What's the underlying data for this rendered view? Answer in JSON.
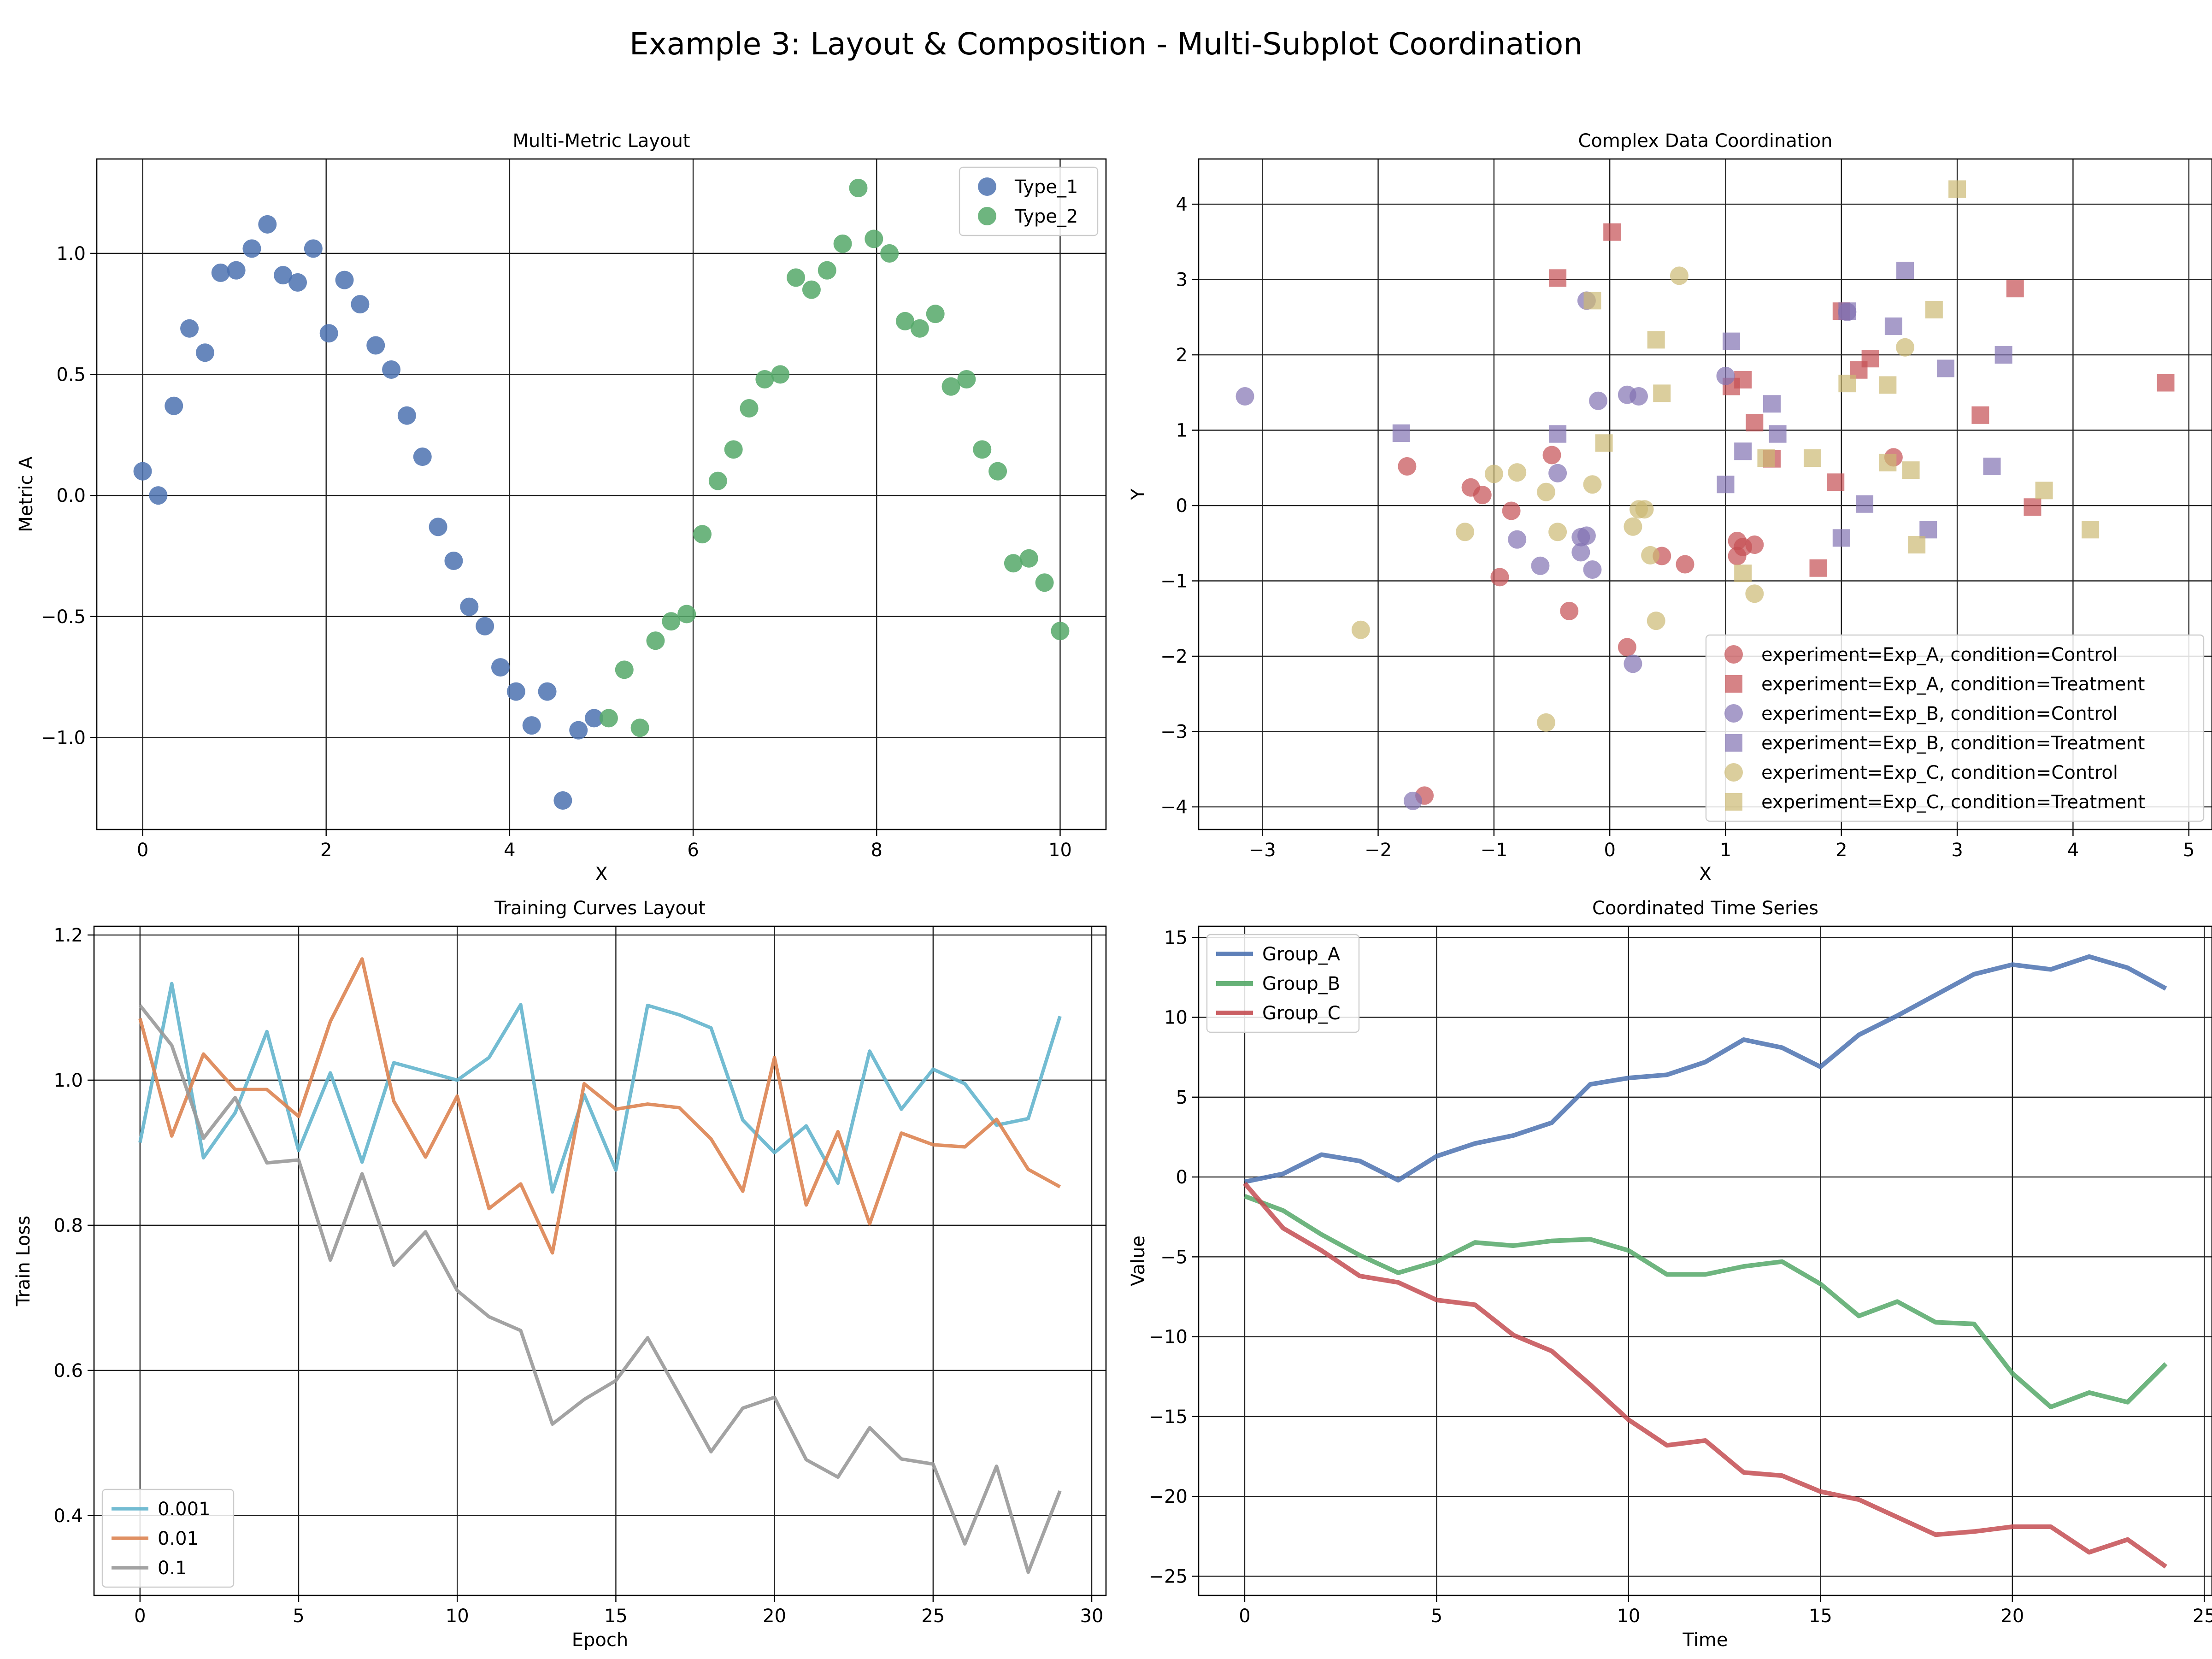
{
  "suptitle": "Example 3: Layout & Composition - Multi-Subplot Coordination",
  "chart_data": [
    {
      "type": "scatter",
      "title": "Multi-Metric Layout",
      "xlabel": "X",
      "ylabel": "Metric A",
      "xlim": [
        -0.5,
        10.5
      ],
      "ylim": [
        -1.38,
        1.39
      ],
      "xticks": [
        0,
        2,
        4,
        6,
        8,
        10
      ],
      "yticks": [
        -1.0,
        -0.5,
        0.0,
        0.5,
        1.0
      ],
      "ytick_labels": [
        "−1.0",
        "−0.5",
        "0.0",
        "0.5",
        "1.0"
      ],
      "grid": true,
      "legend": "top-right",
      "series": [
        {
          "name": "Type_1",
          "color": "#4c72b0",
          "points": [
            [
              0.0,
              0.1
            ],
            [
              0.17,
              0.0
            ],
            [
              0.34,
              0.37
            ],
            [
              0.51,
              0.69
            ],
            [
              0.68,
              0.59
            ],
            [
              0.85,
              0.92
            ],
            [
              1.02,
              0.93
            ],
            [
              1.19,
              1.02
            ],
            [
              1.36,
              1.12
            ],
            [
              1.53,
              0.91
            ],
            [
              1.69,
              0.88
            ],
            [
              1.86,
              1.02
            ],
            [
              2.03,
              0.67
            ],
            [
              2.2,
              0.89
            ],
            [
              2.37,
              0.79
            ],
            [
              2.54,
              0.62
            ],
            [
              2.71,
              0.52
            ],
            [
              2.88,
              0.33
            ],
            [
              3.05,
              0.16
            ],
            [
              3.22,
              -0.13
            ],
            [
              3.39,
              -0.27
            ],
            [
              3.56,
              -0.46
            ],
            [
              3.73,
              -0.54
            ],
            [
              3.9,
              -0.71
            ],
            [
              4.07,
              -0.81
            ],
            [
              4.24,
              -0.95
            ],
            [
              4.41,
              -0.81
            ],
            [
              4.58,
              -1.26
            ],
            [
              4.75,
              -0.97
            ],
            [
              4.92,
              -0.92
            ]
          ]
        },
        {
          "name": "Type_2",
          "color": "#55a868",
          "points": [
            [
              5.08,
              -0.92
            ],
            [
              5.25,
              -0.72
            ],
            [
              5.42,
              -0.96
            ],
            [
              5.59,
              -0.6
            ],
            [
              5.76,
              -0.52
            ],
            [
              5.93,
              -0.49
            ],
            [
              6.1,
              -0.16
            ],
            [
              6.27,
              0.06
            ],
            [
              6.44,
              0.19
            ],
            [
              6.61,
              0.36
            ],
            [
              6.78,
              0.48
            ],
            [
              6.95,
              0.5
            ],
            [
              7.12,
              0.9
            ],
            [
              7.29,
              0.85
            ],
            [
              7.46,
              0.93
            ],
            [
              7.63,
              1.04
            ],
            [
              7.8,
              1.27
            ],
            [
              7.97,
              1.06
            ],
            [
              8.14,
              1.0
            ],
            [
              8.31,
              0.72
            ],
            [
              8.47,
              0.69
            ],
            [
              8.64,
              0.75
            ],
            [
              8.81,
              0.45
            ],
            [
              8.98,
              0.48
            ],
            [
              9.15,
              0.19
            ],
            [
              9.32,
              0.1
            ],
            [
              9.49,
              -0.28
            ],
            [
              9.66,
              -0.26
            ],
            [
              9.83,
              -0.36
            ],
            [
              10.0,
              -0.56
            ]
          ]
        }
      ]
    },
    {
      "type": "scatter",
      "title": "Complex Data Coordination",
      "xlabel": "X",
      "ylabel": "Y",
      "xlim": [
        -3.55,
        5.2
      ],
      "ylim": [
        -4.3,
        4.6
      ],
      "xticks": [
        -3,
        -2,
        -1,
        0,
        1,
        2,
        3,
        4,
        5
      ],
      "xtick_labels": [
        "−3",
        "−2",
        "−1",
        "0",
        "1",
        "2",
        "3",
        "4",
        "5"
      ],
      "yticks": [
        -4,
        -3,
        -2,
        -1,
        0,
        1,
        2,
        3,
        4
      ],
      "ytick_labels": [
        "−4",
        "−3",
        "−2",
        "−1",
        "0",
        "1",
        "2",
        "3",
        "4"
      ],
      "grid": true,
      "legend": "bottom-right",
      "series": [
        {
          "name": "experiment=Exp_A, condition=Control",
          "color": "#c44e52",
          "marker": "circle",
          "points": [
            [
              -1.75,
              0.52
            ],
            [
              -1.2,
              0.24
            ],
            [
              -1.1,
              0.14
            ],
            [
              -0.95,
              -0.95
            ],
            [
              -0.85,
              -0.07
            ],
            [
              -0.5,
              0.67
            ],
            [
              -0.35,
              -1.4
            ],
            [
              0.15,
              -1.88
            ],
            [
              0.45,
              -0.67
            ],
            [
              0.65,
              -0.78
            ],
            [
              1.1,
              -0.47
            ],
            [
              1.1,
              -0.67
            ],
            [
              1.15,
              -0.55
            ],
            [
              1.25,
              -0.52
            ],
            [
              2.45,
              0.64
            ],
            [
              -1.6,
              -3.85
            ]
          ]
        },
        {
          "name": "experiment=Exp_A, condition=Treatment",
          "color": "#c44e52",
          "marker": "square",
          "points": [
            [
              -0.45,
              3.02
            ],
            [
              0.02,
              3.63
            ],
            [
              1.05,
              1.58
            ],
            [
              1.15,
              1.67
            ],
            [
              1.25,
              1.1
            ],
            [
              1.4,
              0.62
            ],
            [
              1.8,
              -0.83
            ],
            [
              1.95,
              0.31
            ],
            [
              2.0,
              2.58
            ],
            [
              2.15,
              1.8
            ],
            [
              2.25,
              1.95
            ],
            [
              3.2,
              1.2
            ],
            [
              3.5,
              2.88
            ],
            [
              3.65,
              -0.02
            ],
            [
              4.8,
              1.63
            ]
          ]
        },
        {
          "name": "experiment=Exp_B, condition=Control",
          "color": "#8172b2",
          "marker": "circle",
          "points": [
            [
              -3.15,
              1.45
            ],
            [
              -0.8,
              -0.45
            ],
            [
              -0.6,
              -0.8
            ],
            [
              -0.45,
              0.43
            ],
            [
              -0.25,
              -0.42
            ],
            [
              -0.2,
              -0.4
            ],
            [
              -0.25,
              -0.62
            ],
            [
              -0.15,
              -0.85
            ],
            [
              -0.1,
              1.39
            ],
            [
              0.15,
              1.47
            ],
            [
              0.25,
              1.45
            ],
            [
              1.0,
              1.72
            ],
            [
              2.05,
              2.57
            ],
            [
              -0.2,
              2.72
            ],
            [
              0.2,
              -2.1
            ],
            [
              -1.7,
              -3.92
            ]
          ]
        },
        {
          "name": "experiment=Exp_B, condition=Treatment",
          "color": "#8172b2",
          "marker": "square",
          "points": [
            [
              -1.8,
              0.96
            ],
            [
              -0.45,
              0.95
            ],
            [
              1.0,
              0.28
            ],
            [
              1.05,
              2.18
            ],
            [
              1.15,
              0.72
            ],
            [
              1.4,
              1.35
            ],
            [
              1.45,
              0.95
            ],
            [
              2.0,
              -0.43
            ],
            [
              2.05,
              2.58
            ],
            [
              2.2,
              0.02
            ],
            [
              2.45,
              2.38
            ],
            [
              2.55,
              3.12
            ],
            [
              2.75,
              -0.32
            ],
            [
              2.9,
              1.82
            ],
            [
              3.3,
              0.52
            ],
            [
              3.4,
              2.0
            ]
          ]
        },
        {
          "name": "experiment=Exp_C, condition=Control",
          "color": "#ccb974",
          "marker": "circle",
          "points": [
            [
              -2.15,
              -1.65
            ],
            [
              -1.25,
              -0.35
            ],
            [
              -1.0,
              0.42
            ],
            [
              -0.8,
              0.44
            ],
            [
              -0.55,
              0.18
            ],
            [
              -0.45,
              -0.35
            ],
            [
              -0.15,
              0.28
            ],
            [
              0.2,
              -0.28
            ],
            [
              0.25,
              -0.05
            ],
            [
              0.3,
              -0.05
            ],
            [
              0.6,
              3.05
            ],
            [
              0.35,
              -0.66
            ],
            [
              0.4,
              -1.53
            ],
            [
              1.25,
              -1.17
            ],
            [
              2.55,
              2.1
            ],
            [
              -0.55,
              -2.88
            ]
          ]
        },
        {
          "name": "experiment=Exp_C, condition=Treatment",
          "color": "#ccb974",
          "marker": "square",
          "points": [
            [
              -0.15,
              2.72
            ],
            [
              -0.05,
              0.83
            ],
            [
              0.4,
              2.2
            ],
            [
              0.45,
              1.49
            ],
            [
              1.15,
              -0.9
            ],
            [
              1.35,
              0.63
            ],
            [
              1.75,
              0.63
            ],
            [
              2.05,
              1.62
            ],
            [
              2.4,
              1.6
            ],
            [
              2.4,
              0.57
            ],
            [
              2.6,
              0.47
            ],
            [
              2.65,
              -0.52
            ],
            [
              2.8,
              2.6
            ],
            [
              3.0,
              4.2
            ],
            [
              3.75,
              0.2
            ],
            [
              4.15,
              -0.32
            ]
          ]
        }
      ]
    },
    {
      "type": "line",
      "title": "Training Curves Layout",
      "xlabel": "Epoch",
      "ylabel": "Train Loss",
      "xlim": [
        -1.45,
        30.45
      ],
      "ylim": [
        0.29,
        1.212
      ],
      "xticks": [
        0,
        5,
        10,
        15,
        20,
        25,
        30
      ],
      "yticks": [
        0.4,
        0.6,
        0.8,
        1.0,
        1.2
      ],
      "ytick_labels": [
        "0.4",
        "0.6",
        "0.8",
        "1.0",
        "1.2"
      ],
      "grid": true,
      "legend": "bottom-left",
      "x": [
        0,
        1,
        2,
        3,
        4,
        5,
        6,
        7,
        8,
        9,
        10,
        11,
        12,
        13,
        14,
        15,
        16,
        17,
        18,
        19,
        20,
        21,
        22,
        23,
        24,
        25,
        26,
        27,
        28,
        29
      ],
      "series": [
        {
          "name": "0.001",
          "color": "#64b5cd",
          "values": [
            0.914,
            1.133,
            0.893,
            0.955,
            1.067,
            0.903,
            1.01,
            0.887,
            1.024,
            1.012,
            1.0,
            1.031,
            1.104,
            0.846,
            0.98,
            0.876,
            1.103,
            1.09,
            1.072,
            0.945,
            0.9,
            0.937,
            0.858,
            1.04,
            0.96,
            1.015,
            0.995,
            0.938,
            0.947,
            1.088
          ]
        },
        {
          "name": "0.01",
          "color": "#dd8452",
          "values": [
            1.085,
            0.923,
            1.036,
            0.987,
            0.987,
            0.95,
            1.081,
            1.167,
            0.971,
            0.894,
            0.978,
            0.823,
            0.857,
            0.762,
            0.995,
            0.96,
            0.967,
            0.962,
            0.919,
            0.847,
            1.031,
            0.828,
            0.929,
            0.802,
            0.927,
            0.911,
            0.908,
            0.946,
            0.877,
            0.853
          ]
        },
        {
          "name": "0.1",
          "color": "#999999",
          "values": [
            1.103,
            1.048,
            0.92,
            0.976,
            0.886,
            0.89,
            0.752,
            0.871,
            0.745,
            0.791,
            0.71,
            0.674,
            0.655,
            0.526,
            0.56,
            0.586,
            0.645,
            0.567,
            0.488,
            0.548,
            0.563,
            0.477,
            0.453,
            0.521,
            0.478,
            0.471,
            0.361,
            0.468,
            0.322,
            0.434
          ]
        }
      ]
    },
    {
      "type": "line",
      "title": "Coordinated Time Series",
      "xlabel": "Time",
      "ylabel": "Value",
      "xlim": [
        -1.2,
        25.2
      ],
      "ylim": [
        -26.2,
        15.7
      ],
      "xticks": [
        0,
        5,
        10,
        15,
        20,
        25
      ],
      "yticks": [
        -25,
        -20,
        -15,
        -10,
        -5,
        0,
        5,
        10,
        15
      ],
      "ytick_labels": [
        "−25",
        "−20",
        "−15",
        "−10",
        "−5",
        "0",
        "5",
        "10",
        "15"
      ],
      "grid": true,
      "legend": "top-left",
      "x": [
        0,
        1,
        2,
        3,
        4,
        5,
        6,
        7,
        8,
        9,
        10,
        11,
        12,
        13,
        14,
        15,
        16,
        17,
        18,
        19,
        20,
        21,
        22,
        23,
        24
      ],
      "series": [
        {
          "name": "Group_A",
          "color": "#4c72b0",
          "values": [
            -0.3,
            0.2,
            1.4,
            1.0,
            -0.2,
            1.3,
            2.1,
            2.6,
            3.4,
            5.8,
            6.2,
            6.4,
            7.2,
            8.6,
            8.1,
            6.9,
            8.9,
            10.1,
            11.4,
            12.7,
            13.3,
            13.0,
            13.8,
            13.1,
            11.8
          ]
        },
        {
          "name": "Group_B",
          "color": "#55a868",
          "values": [
            -1.2,
            -2.1,
            -3.6,
            -4.9,
            -6.0,
            -5.3,
            -4.1,
            -4.3,
            -4.0,
            -3.9,
            -4.6,
            -6.1,
            -6.1,
            -5.6,
            -5.3,
            -6.7,
            -8.7,
            -7.8,
            -9.1,
            -9.2,
            -12.3,
            -14.4,
            -13.5,
            -14.1,
            -11.7
          ]
        },
        {
          "name": "Group_C",
          "color": "#c44e52",
          "values": [
            -0.4,
            -3.2,
            -4.6,
            -6.2,
            -6.6,
            -7.7,
            -8.0,
            -9.9,
            -10.9,
            -13.0,
            -15.2,
            -16.8,
            -16.5,
            -18.5,
            -18.7,
            -19.7,
            -20.2,
            -21.3,
            -22.4,
            -22.2,
            -21.9,
            -21.9,
            -23.5,
            -22.7,
            -24.4
          ]
        }
      ]
    }
  ]
}
